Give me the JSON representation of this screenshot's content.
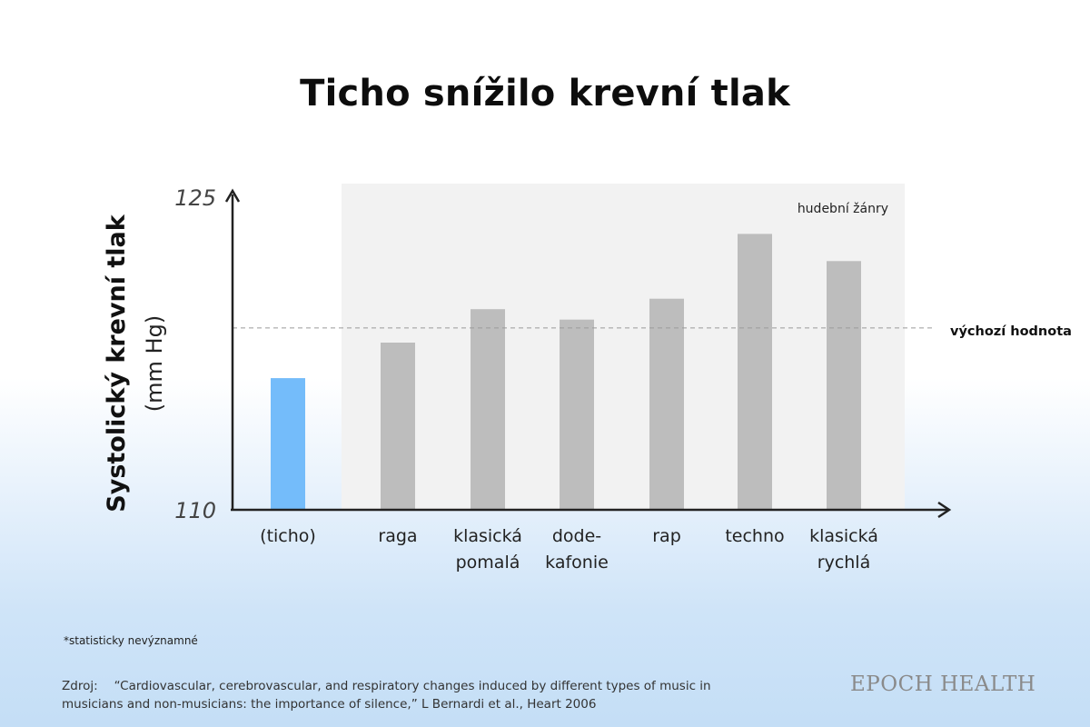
{
  "title": "Ticho snížilo krevní tlak",
  "chart_data": {
    "type": "bar",
    "ylabel": "Systolický krevní tlak",
    "ylabel_unit": "(mm Hg)",
    "ylim": [
      110,
      125
    ],
    "y_ticks": [
      "125",
      "110"
    ],
    "categories": [
      [
        "(ticho)"
      ],
      [
        "raga"
      ],
      [
        "klasická",
        "pomalá"
      ],
      [
        "dode-",
        "kafonie"
      ],
      [
        "rap"
      ],
      [
        "techno"
      ],
      [
        "klasická",
        "rychlá"
      ]
    ],
    "values": [
      116.3,
      118.0,
      119.6,
      119.1,
      120.1,
      123.2,
      121.9
    ],
    "colors": [
      "#74bcfa",
      "#bdbdbd",
      "#bdbdbd",
      "#bdbdbd",
      "#bdbdbd",
      "#bdbdbd",
      "#bdbdbd"
    ],
    "baseline": {
      "value": 118.7,
      "label": "výchozí hodnota"
    },
    "group_label": "hudební žánry",
    "grid": false
  },
  "footnote": "*statisticky nevýznamné",
  "source": {
    "label": "Zdroj:",
    "text": "“Cardiovascular, cerebrovascular, and respiratory changes induced by different types of music in musicians and non-musicians: the importance of silence,” L Bernardi et al., Heart 2006"
  },
  "brand": "EPOCH HEALTH"
}
